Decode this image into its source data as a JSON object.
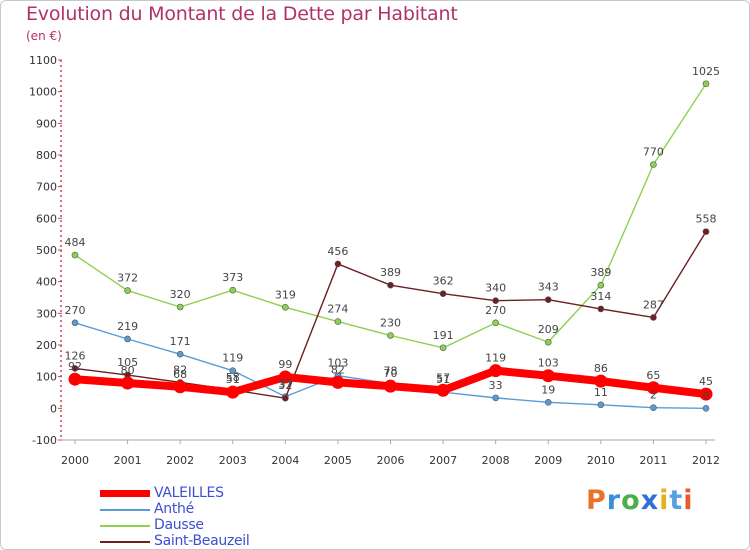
{
  "title": "Evolution du Montant de la Dette par Habitant",
  "subtitle": "(en €)",
  "brand": {
    "text": "Proxiti",
    "letter_colors": [
      "#e8742a",
      "#3a8fd8",
      "#4bb04b",
      "#2f6fd6",
      "#e2b21a",
      "#5aa0e0",
      "#e85a2a"
    ]
  },
  "chart_data": {
    "type": "line",
    "x": [
      "2000",
      "2001",
      "2002",
      "2003",
      "2004",
      "2005",
      "2006",
      "2007",
      "2008",
      "2009",
      "2010",
      "2011",
      "2012"
    ],
    "ylim": [
      -100,
      1100
    ],
    "yticks": [
      "-100",
      "0",
      "100",
      "200",
      "300",
      "400",
      "500",
      "600",
      "700",
      "800",
      "900",
      "1000",
      "1100"
    ],
    "grid": false,
    "legend_position": "bottom-left",
    "series": [
      {
        "name": "VALEILLES",
        "color": "#ff0000",
        "values": [
          92,
          80,
          68,
          51,
          99,
          82,
          70,
          57,
          119,
          103,
          86,
          65,
          45
        ]
      },
      {
        "name": "Anthé",
        "color": "#5b9bd5",
        "values": [
          270,
          219,
          171,
          119,
          37,
          103,
          78,
          51,
          33,
          19,
          11,
          2,
          0
        ]
      },
      {
        "name": "Dausse",
        "color": "#8dd14f",
        "values": [
          484,
          372,
          320,
          373,
          319,
          274,
          230,
          191,
          270,
          209,
          389,
          770,
          1025
        ]
      },
      {
        "name": "Saint-Beauzeil",
        "color": "#6e1f24",
        "values": [
          126,
          105,
          82,
          58,
          32,
          456,
          389,
          362,
          340,
          343,
          314,
          287,
          558
        ]
      }
    ]
  }
}
